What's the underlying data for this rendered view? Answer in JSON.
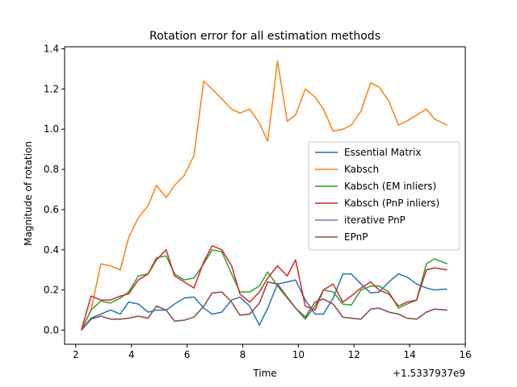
{
  "chart_data": {
    "type": "line",
    "title": "Rotation error for all estimation methods",
    "xlabel": "Time",
    "ylabel": "Magnitude of rotation",
    "x_offset_label": "+1.5337937e9",
    "xlim": [
      1.6,
      16.0
    ],
    "ylim": [
      -0.07,
      1.41
    ],
    "xticks": [
      2,
      4,
      6,
      8,
      10,
      12,
      14,
      16
    ],
    "yticks": [
      0.0,
      0.2,
      0.4,
      0.6,
      0.8,
      1.0,
      1.2,
      1.4
    ],
    "x": [
      2.2,
      2.55,
      2.9,
      3.25,
      3.6,
      3.9,
      4.25,
      4.6,
      4.9,
      5.25,
      5.55,
      5.9,
      6.25,
      6.6,
      6.9,
      7.25,
      7.6,
      7.9,
      8.25,
      8.6,
      8.9,
      9.25,
      9.6,
      9.9,
      10.25,
      10.6,
      10.9,
      11.25,
      11.6,
      11.9,
      12.25,
      12.6,
      12.9,
      13.25,
      13.6,
      13.9,
      14.25,
      14.6,
      14.9,
      15.35
    ],
    "series": [
      {
        "name": "Essential Matrix",
        "color": "#1f77b4",
        "values": [
          0.0,
          0.06,
          0.08,
          0.1,
          0.08,
          0.14,
          0.13,
          0.09,
          0.1,
          0.1,
          0.13,
          0.16,
          0.165,
          0.11,
          0.08,
          0.09,
          0.15,
          0.165,
          0.12,
          0.025,
          0.11,
          0.23,
          0.24,
          0.25,
          0.15,
          0.08,
          0.08,
          0.16,
          0.28,
          0.28,
          0.23,
          0.185,
          0.19,
          0.24,
          0.28,
          0.265,
          0.23,
          0.21,
          0.2,
          0.205
        ]
      },
      {
        "name": "Kabsch",
        "color": "#ff7f0e",
        "values": [
          0.0,
          0.1,
          0.33,
          0.32,
          0.3,
          0.46,
          0.56,
          0.62,
          0.72,
          0.66,
          0.72,
          0.77,
          0.87,
          1.24,
          1.2,
          1.15,
          1.1,
          1.08,
          1.1,
          1.03,
          0.94,
          1.34,
          1.04,
          1.07,
          1.2,
          1.16,
          1.1,
          0.99,
          1.0,
          1.02,
          1.09,
          1.23,
          1.21,
          1.14,
          1.02,
          1.04,
          1.07,
          1.1,
          1.05,
          1.02
        ]
      },
      {
        "name": "Kabsch (EM inliers)",
        "color": "#2ca02c",
        "values": [
          0.0,
          0.1,
          0.145,
          0.135,
          0.16,
          0.19,
          0.27,
          0.28,
          0.36,
          0.37,
          0.28,
          0.25,
          0.26,
          0.33,
          0.4,
          0.39,
          0.28,
          0.19,
          0.19,
          0.22,
          0.29,
          0.22,
          0.16,
          0.11,
          0.055,
          0.12,
          0.2,
          0.19,
          0.13,
          0.125,
          0.2,
          0.22,
          0.22,
          0.19,
          0.11,
          0.13,
          0.15,
          0.33,
          0.355,
          0.33
        ]
      },
      {
        "name": "Kabsch (PnP inliers)",
        "color": "#d62728",
        "values": [
          0.0,
          0.17,
          0.15,
          0.15,
          0.17,
          0.18,
          0.25,
          0.28,
          0.35,
          0.4,
          0.27,
          0.24,
          0.21,
          0.34,
          0.42,
          0.4,
          0.32,
          0.18,
          0.14,
          0.19,
          0.26,
          0.32,
          0.27,
          0.35,
          0.12,
          0.1,
          0.2,
          0.23,
          0.14,
          0.17,
          0.21,
          0.24,
          0.2,
          0.18,
          0.12,
          0.14,
          0.15,
          0.3,
          0.31,
          0.3
        ]
      },
      {
        "name": "iterative PnP",
        "color": "#9467bd",
        "values": [
          0.0,
          0.055,
          0.07,
          0.055,
          0.055,
          0.06,
          0.07,
          0.06,
          0.12,
          0.1,
          0.045,
          0.05,
          0.065,
          0.12,
          0.185,
          0.19,
          0.14,
          0.075,
          0.08,
          0.135,
          0.24,
          0.23,
          0.165,
          0.11,
          0.065,
          0.14,
          0.155,
          0.13,
          0.065,
          0.06,
          0.055,
          0.105,
          0.11,
          0.09,
          0.08,
          0.06,
          0.055,
          0.09,
          0.105,
          0.1
        ]
      },
      {
        "name": "EPnP",
        "color": "#8c564b",
        "values": [
          0.0,
          0.055,
          0.07,
          0.055,
          0.055,
          0.06,
          0.07,
          0.06,
          0.12,
          0.1,
          0.045,
          0.05,
          0.065,
          0.12,
          0.185,
          0.19,
          0.14,
          0.075,
          0.08,
          0.135,
          0.24,
          0.23,
          0.165,
          0.11,
          0.065,
          0.14,
          0.155,
          0.13,
          0.065,
          0.06,
          0.055,
          0.105,
          0.11,
          0.09,
          0.08,
          0.06,
          0.055,
          0.09,
          0.105,
          0.1
        ]
      }
    ],
    "legend_position": "center-right",
    "grid": false
  }
}
